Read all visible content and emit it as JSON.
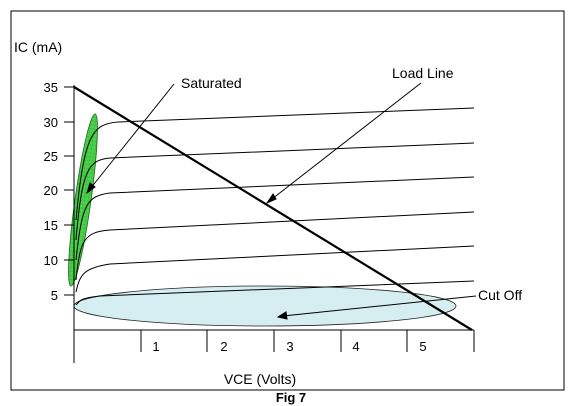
{
  "figure": {
    "caption": "Fig 7",
    "y_axis_label": "IC (mA)",
    "x_axis_label": "VCE (Volts)",
    "y_ticks": [
      "35",
      "30",
      "25",
      "20",
      "15",
      "10",
      "5"
    ],
    "x_ticks": [
      "1",
      "2",
      "3",
      "4",
      "5"
    ],
    "annotations": {
      "saturated": "Saturated",
      "load_line": "Load Line",
      "cut_off": "Cut Off"
    },
    "colors": {
      "saturated_region": "#4cd14c",
      "cutoff_region": "#d6eef2",
      "curves": "#000000"
    }
  }
}
